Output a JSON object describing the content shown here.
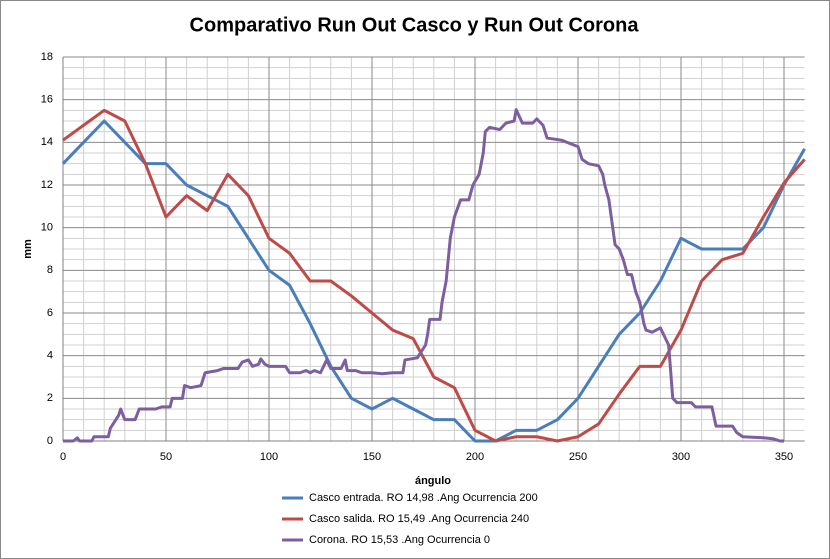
{
  "chart_data": {
    "type": "line",
    "title": "Comparativo Run Out Casco y Run Out Corona",
    "x_label": "ángulo",
    "y_label": "mm",
    "xlim": [
      0,
      360
    ],
    "xticks": [
      0,
      50,
      100,
      150,
      200,
      250,
      300,
      350
    ],
    "ylim": [
      0,
      18
    ],
    "yticks": [
      0,
      2,
      4,
      6,
      8,
      10,
      12,
      14,
      16,
      18
    ],
    "grid": true,
    "minor_divisions": {
      "x": 5,
      "y": 4
    },
    "legend": "bottom",
    "series": [
      {
        "name": "Casco entrada. RO 14,98 .Ang Ocurrencia 200",
        "color": "#4a7ebb",
        "x": [
          0,
          10,
          20,
          30,
          40,
          50,
          60,
          70,
          80,
          90,
          100,
          110,
          120,
          130,
          140,
          150,
          160,
          170,
          180,
          190,
          200,
          210,
          220,
          230,
          240,
          250,
          260,
          270,
          280,
          290,
          300,
          310,
          320,
          330,
          340,
          350,
          360
        ],
        "values": [
          13,
          14,
          15,
          14,
          13,
          13,
          12,
          11.5,
          11,
          9.5,
          8,
          7.3,
          5.5,
          3.5,
          2,
          1.5,
          2,
          1.5,
          1,
          1,
          0,
          0,
          0.5,
          0.5,
          1,
          2,
          3.5,
          5,
          6,
          7.5,
          9.5,
          9,
          9,
          9,
          10,
          12,
          13.7
        ]
      },
      {
        "name": "Casco salida. RO 15,49 .Ang Ocurrencia 240",
        "color": "#be4b48",
        "x": [
          0,
          10,
          20,
          30,
          40,
          50,
          60,
          70,
          80,
          90,
          100,
          110,
          120,
          130,
          140,
          150,
          160,
          170,
          180,
          190,
          200,
          210,
          220,
          230,
          240,
          250,
          260,
          270,
          280,
          290,
          300,
          310,
          320,
          330,
          340,
          350,
          360
        ],
        "values": [
          14.1,
          14.8,
          15.5,
          15,
          13,
          10.5,
          11.5,
          10.8,
          12.5,
          11.5,
          9.5,
          8.8,
          7.5,
          7.5,
          6.8,
          6,
          5.2,
          4.8,
          3,
          2.5,
          0.5,
          0,
          0.2,
          0.2,
          0,
          0.2,
          0.8,
          2.2,
          3.5,
          3.5,
          5.2,
          7.5,
          8.5,
          8.8,
          10.5,
          12.1,
          13.2
        ]
      },
      {
        "name": "Corona. RO 15,53 .Ang Ocurrencia 0",
        "color": "#7d5fa0",
        "x": [
          0,
          5,
          7,
          8,
          14,
          15,
          22,
          23,
          25,
          27,
          28,
          30,
          35,
          37,
          45,
          48,
          52,
          53,
          58,
          59,
          62,
          67,
          69,
          75,
          78,
          85,
          87,
          90,
          92,
          95,
          96,
          98,
          100,
          108,
          110,
          115,
          118,
          120,
          122,
          125,
          127,
          128,
          130,
          135,
          137,
          138,
          142,
          145,
          150,
          155,
          160,
          165,
          166,
          172,
          176,
          177,
          178,
          183,
          184,
          186,
          187,
          188,
          190,
          193,
          197,
          199,
          202,
          204,
          205,
          207,
          212,
          215,
          219,
          220,
          223,
          228,
          230,
          233,
          235,
          242,
          250,
          252,
          255,
          260,
          262,
          263,
          265,
          268,
          270,
          272,
          274,
          276,
          278,
          280,
          282,
          283,
          286,
          290,
          294,
          296,
          298,
          305,
          307,
          315,
          317,
          325,
          327,
          330,
          340,
          345,
          348,
          350
        ],
        "values": [
          0,
          0,
          0.15,
          0,
          0,
          0.2,
          0.2,
          0.6,
          0.9,
          1.2,
          1.5,
          1.0,
          1.0,
          1.5,
          1.5,
          1.6,
          1.6,
          2.0,
          2.0,
          2.6,
          2.5,
          2.6,
          3.2,
          3.3,
          3.4,
          3.4,
          3.7,
          3.8,
          3.5,
          3.6,
          3.85,
          3.6,
          3.5,
          3.5,
          3.2,
          3.2,
          3.3,
          3.2,
          3.3,
          3.2,
          3.6,
          3.8,
          3.4,
          3.4,
          3.8,
          3.3,
          3.3,
          3.2,
          3.2,
          3.15,
          3.2,
          3.2,
          3.8,
          3.9,
          4.5,
          5.0,
          5.7,
          5.7,
          6.5,
          7.5,
          8.5,
          9.5,
          10.5,
          11.3,
          11.3,
          12.0,
          12.5,
          13.5,
          14.5,
          14.7,
          14.6,
          14.9,
          15.0,
          15.53,
          14.9,
          14.9,
          15.1,
          14.8,
          14.2,
          14.1,
          13.8,
          13.2,
          13.0,
          12.9,
          12.5,
          12.0,
          11.3,
          9.2,
          9.0,
          8.5,
          7.8,
          7.8,
          7.0,
          6.5,
          5.5,
          5.2,
          5.1,
          5.3,
          4.5,
          2.0,
          1.8,
          1.8,
          1.6,
          1.6,
          0.7,
          0.7,
          0.4,
          0.2,
          0.15,
          0.1,
          0.0,
          0.0
        ]
      }
    ]
  }
}
